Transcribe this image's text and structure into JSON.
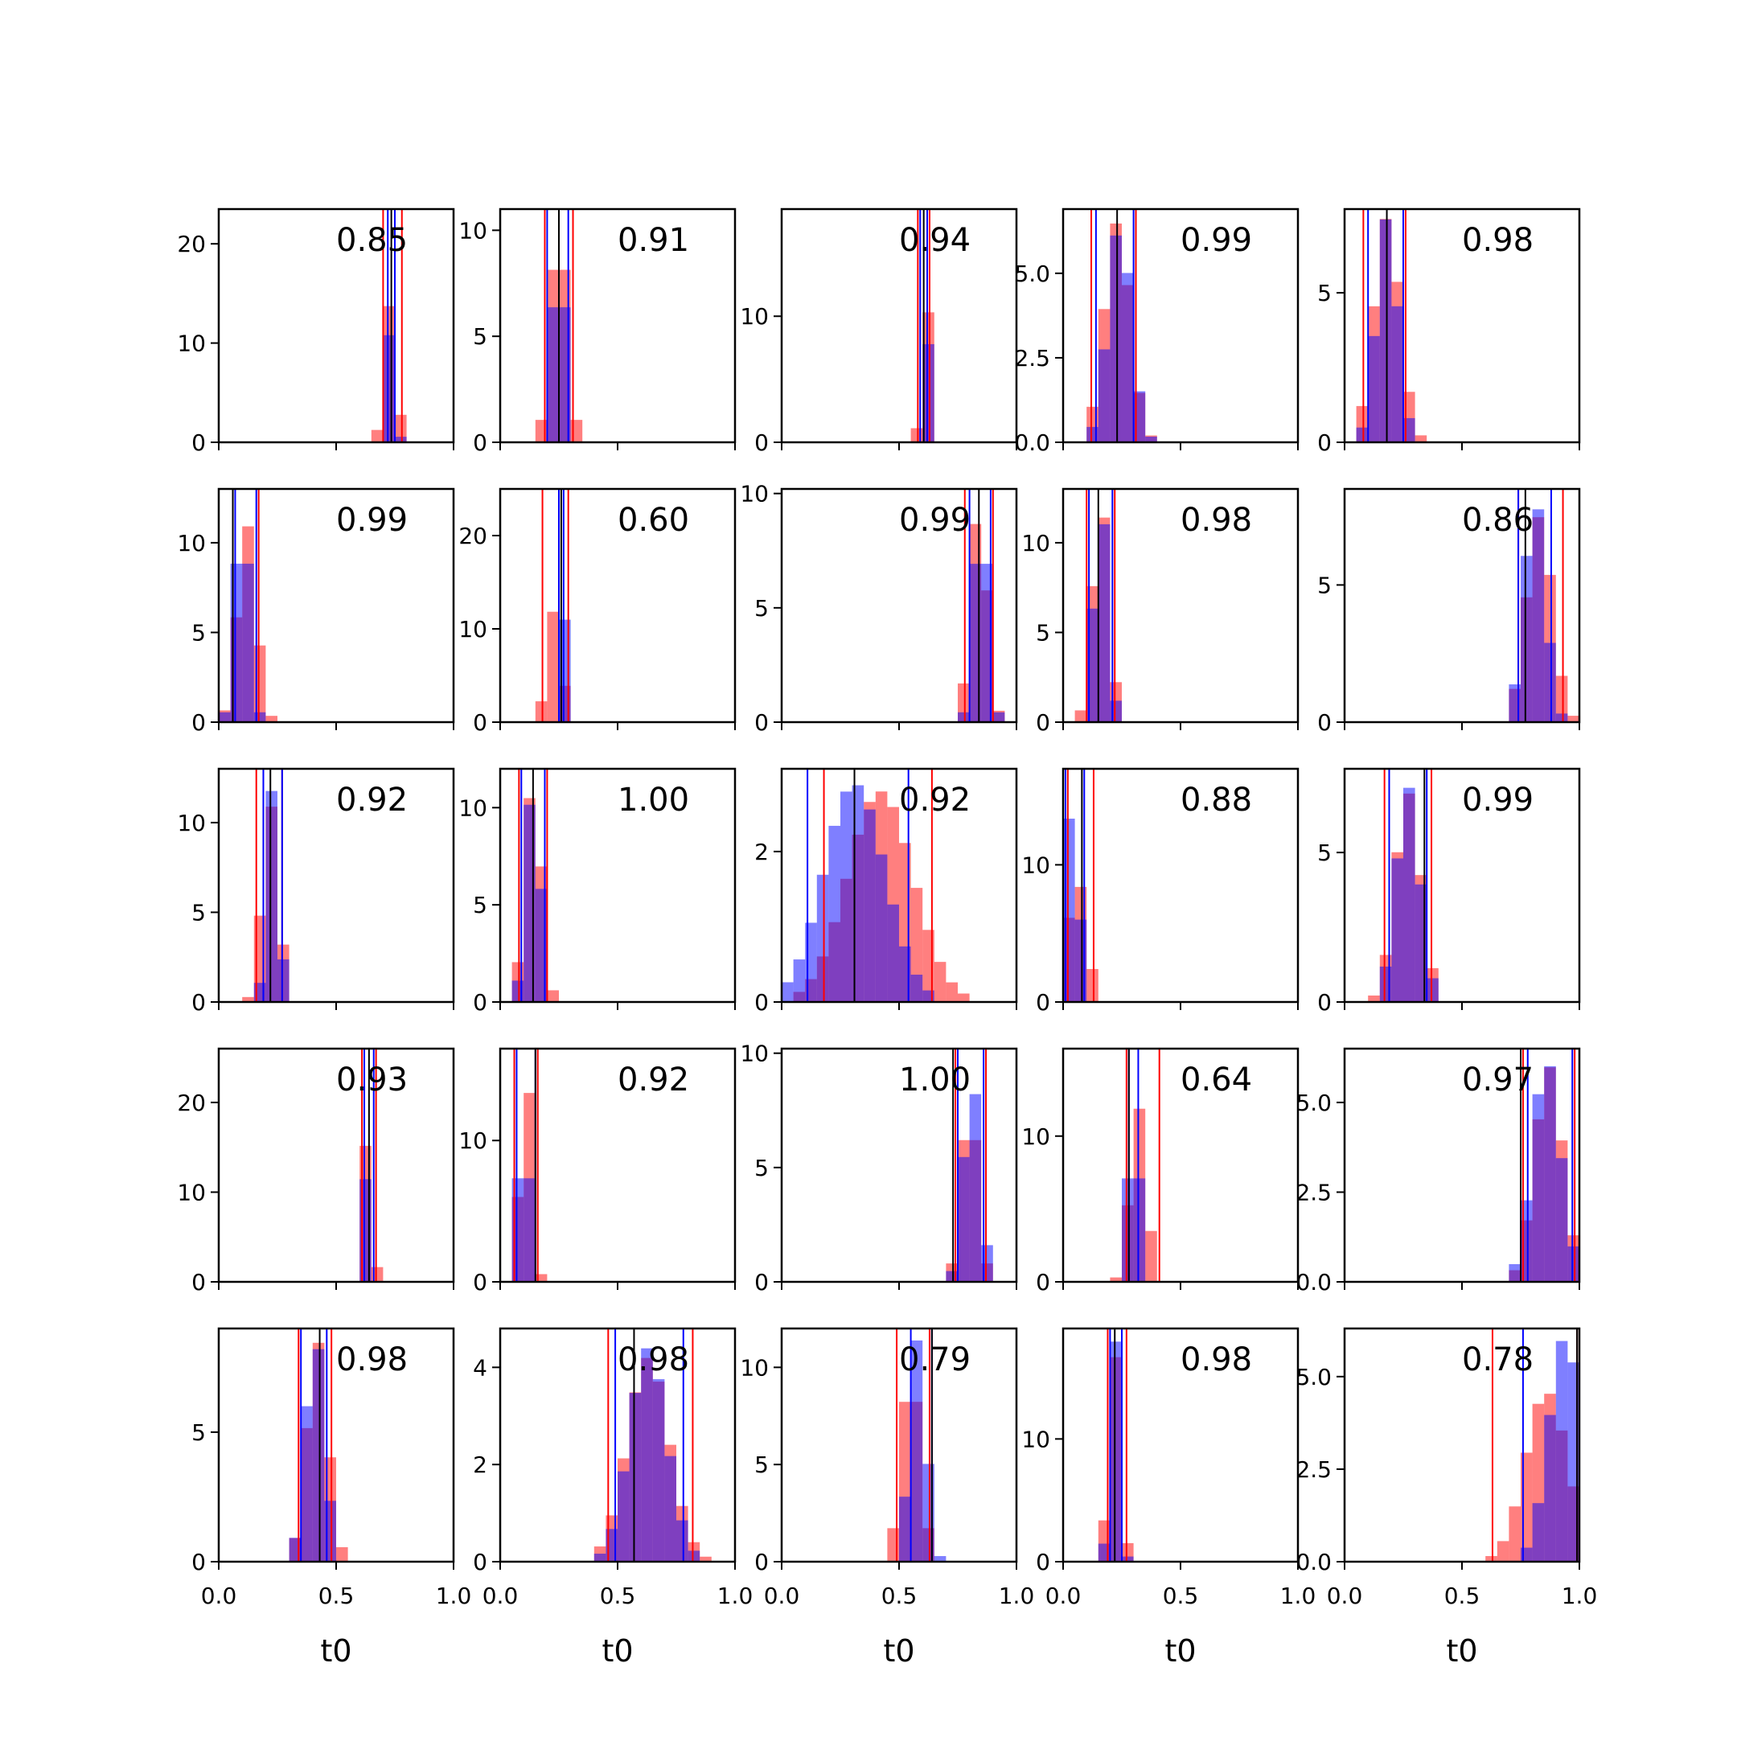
{
  "figure": {
    "xlabel": "t0"
  },
  "colors": {
    "red_series": "#ff0000",
    "blue_series": "#0000ff",
    "overlap": "#7f3fbf",
    "median_line": "#000000",
    "background": "#ffffff"
  },
  "chart_data": {
    "type": "histogram-grid",
    "rows": 5,
    "cols": 5,
    "xlim": [
      0,
      1
    ],
    "xticks": [
      0.0,
      0.5,
      1.0
    ],
    "xtick_labels": [
      "0.0",
      "0.5",
      "1.0"
    ],
    "xlabel": "t0",
    "series_colors": {
      "red": "#ff0000",
      "blue": "#0000ff"
    },
    "panels": [
      {
        "annotation": "0.85",
        "ymax": 23.5,
        "yticks": [
          0,
          10,
          20
        ],
        "ytick_labels": [
          "0",
          "10",
          "20"
        ],
        "red": {
          "mean": 0.73,
          "sd": 0.025,
          "peak": 14
        },
        "blue": {
          "mean": 0.74,
          "sd": 0.013,
          "peak": 21
        },
        "vlines": {
          "red": [
            0.7,
            0.78
          ],
          "blue": [
            0.72,
            0.75
          ],
          "black": 0.735
        }
      },
      {
        "annotation": "0.91",
        "ymax": 11,
        "yticks": [
          0,
          5,
          10
        ],
        "ytick_labels": [
          "0",
          "5",
          "10"
        ],
        "red": {
          "mean": 0.25,
          "sd": 0.035,
          "peak": 10.5
        },
        "blue": {
          "mean": 0.25,
          "sd": 0.025,
          "peak": 10.5
        },
        "vlines": {
          "red": [
            0.19,
            0.31
          ],
          "blue": [
            0.2,
            0.29
          ],
          "black": 0.25
        }
      },
      {
        "annotation": "0.94",
        "ymax": 18.5,
        "yticks": [
          0,
          10
        ],
        "ytick_labels": [
          "0",
          "10"
        ],
        "red": {
          "mean": 0.61,
          "sd": 0.015,
          "peak": 17
        },
        "blue": {
          "mean": 0.61,
          "sd": 0.012,
          "peak": 17
        },
        "vlines": {
          "red": [
            0.58,
            0.63
          ],
          "blue": [
            0.59,
            0.62
          ],
          "black": 0.605
        }
      },
      {
        "annotation": "0.99",
        "ymax": 6.9,
        "yticks": [
          0,
          2.5,
          5
        ],
        "ytick_labels": [
          "0.0",
          "2.5",
          "5.0"
        ],
        "red": {
          "mean": 0.23,
          "sd": 0.055,
          "peak": 6.5
        },
        "blue": {
          "mean": 0.24,
          "sd": 0.05,
          "peak": 6.4
        },
        "vlines": {
          "red": [
            0.12,
            0.31
          ],
          "blue": [
            0.14,
            0.3
          ],
          "black": 0.23
        }
      },
      {
        "annotation": "0.98",
        "ymax": 7.8,
        "yticks": [
          0,
          5
        ],
        "ytick_labels": [
          "0",
          "5"
        ],
        "red": {
          "mean": 0.18,
          "sd": 0.055,
          "peak": 7.5
        },
        "blue": {
          "mean": 0.18,
          "sd": 0.045,
          "peak": 7.5
        },
        "vlines": {
          "red": [
            0.08,
            0.26
          ],
          "blue": [
            0.1,
            0.25
          ],
          "black": 0.18
        }
      },
      {
        "annotation": "0.99",
        "ymax": 13,
        "yticks": [
          0,
          5,
          10
        ],
        "ytick_labels": [
          "0",
          "5",
          "10"
        ],
        "red": {
          "mean": 0.12,
          "sd": 0.04,
          "peak": 11
        },
        "blue": {
          "mean": 0.1,
          "sd": 0.03,
          "peak": 12.5
        },
        "vlines": {
          "red": [
            0.06,
            0.17
          ],
          "blue": [
            0.07,
            0.16
          ],
          "black": 0.06
        }
      },
      {
        "annotation": "0.60",
        "ymax": 25,
        "yticks": [
          0,
          10,
          20
        ],
        "ytick_labels": [
          "0",
          "10",
          "20"
        ],
        "red": {
          "mean": 0.23,
          "sd": 0.03,
          "peak": 12
        },
        "blue": {
          "mean": 0.26,
          "sd": 0.012,
          "peak": 24
        },
        "vlines": {
          "red": [
            0.18,
            0.29
          ],
          "blue": [
            0.25,
            0.27
          ],
          "black": 0.26
        }
      },
      {
        "annotation": "0.99",
        "ymax": 10.2,
        "yticks": [
          0,
          5,
          10
        ],
        "ytick_labels": [
          "0",
          "5",
          "10"
        ],
        "red": {
          "mean": 0.84,
          "sd": 0.035,
          "peak": 9.5
        },
        "blue": {
          "mean": 0.85,
          "sd": 0.03,
          "peak": 9.8
        },
        "vlines": {
          "red": [
            0.78,
            0.9
          ],
          "blue": [
            0.8,
            0.89
          ],
          "black": 0.84
        }
      },
      {
        "annotation": "0.98",
        "ymax": 13,
        "yticks": [
          0,
          5,
          10
        ],
        "ytick_labels": [
          "0",
          "5",
          "10"
        ],
        "red": {
          "mean": 0.16,
          "sd": 0.035,
          "peak": 12.5
        },
        "blue": {
          "mean": 0.16,
          "sd": 0.03,
          "peak": 12.5
        },
        "vlines": {
          "red": [
            0.1,
            0.22
          ],
          "blue": [
            0.11,
            0.21
          ],
          "black": 0.15
        }
      },
      {
        "annotation": "0.86",
        "ymax": 8.5,
        "yticks": [
          0,
          5
        ],
        "ytick_labels": [
          "0",
          "5"
        ],
        "red": {
          "mean": 0.83,
          "sd": 0.055,
          "peak": 7.5
        },
        "blue": {
          "mean": 0.81,
          "sd": 0.045,
          "peak": 8.2
        },
        "vlines": {
          "red": [
            0.74,
            0.93
          ],
          "blue": [
            0.74,
            0.88
          ],
          "black": 0.77
        }
      },
      {
        "annotation": "0.92",
        "ymax": 13,
        "yticks": [
          0,
          5,
          10
        ],
        "ytick_labels": [
          "0",
          "5",
          "10"
        ],
        "red": {
          "mean": 0.22,
          "sd": 0.035,
          "peak": 11
        },
        "blue": {
          "mean": 0.23,
          "sd": 0.025,
          "peak": 12
        },
        "vlines": {
          "red": [
            0.16,
            0.27
          ],
          "blue": [
            0.19,
            0.27
          ],
          "black": 0.22
        }
      },
      {
        "annotation": "1.00",
        "ymax": 12,
        "yticks": [
          0,
          5,
          10
        ],
        "ytick_labels": [
          "0",
          "5",
          "10"
        ],
        "red": {
          "mean": 0.14,
          "sd": 0.035,
          "peak": 11.5
        },
        "blue": {
          "mean": 0.14,
          "sd": 0.03,
          "peak": 11.5
        },
        "vlines": {
          "red": [
            0.08,
            0.2
          ],
          "blue": [
            0.09,
            0.19
          ],
          "black": 0.14
        }
      },
      {
        "annotation": "0.92",
        "ymax": 3.1,
        "yticks": [
          0,
          2
        ],
        "ytick_labels": [
          "0",
          "2"
        ],
        "red": {
          "mean": 0.42,
          "sd": 0.14,
          "peak": 2.8
        },
        "blue": {
          "mean": 0.31,
          "sd": 0.13,
          "peak": 2.9
        },
        "vlines": {
          "red": [
            0.18,
            0.64
          ],
          "blue": [
            0.11,
            0.54
          ],
          "black": 0.31
        }
      },
      {
        "annotation": "0.88",
        "ymax": 17,
        "yticks": [
          0,
          10
        ],
        "ytick_labels": [
          "0",
          "10"
        ],
        "red": {
          "mean": 0.06,
          "sd": 0.04,
          "peak": 9
        },
        "blue": {
          "mean": 0.04,
          "sd": 0.025,
          "peak": 16
        },
        "vlines": {
          "red": [
            0.02,
            0.13
          ],
          "blue": [
            0.01,
            0.09
          ],
          "black": 0.08
        }
      },
      {
        "annotation": "0.99",
        "ymax": 7.8,
        "yticks": [
          0,
          5
        ],
        "ytick_labels": [
          "0",
          "5"
        ],
        "red": {
          "mean": 0.27,
          "sd": 0.055,
          "peak": 7
        },
        "blue": {
          "mean": 0.27,
          "sd": 0.05,
          "peak": 7.2
        },
        "vlines": {
          "red": [
            0.17,
            0.37
          ],
          "blue": [
            0.19,
            0.35
          ],
          "black": 0.34
        }
      },
      {
        "annotation": "0.93",
        "ymax": 26,
        "yticks": [
          0,
          10,
          20
        ],
        "ytick_labels": [
          "0",
          "10",
          "20"
        ],
        "red": {
          "mean": 0.64,
          "sd": 0.015,
          "peak": 25
        },
        "blue": {
          "mean": 0.64,
          "sd": 0.012,
          "peak": 25
        },
        "vlines": {
          "red": [
            0.61,
            0.67
          ],
          "blue": [
            0.62,
            0.66
          ],
          "black": 0.64
        }
      },
      {
        "annotation": "0.92",
        "ymax": 16.5,
        "yticks": [
          0,
          10
        ],
        "ytick_labels": [
          "0",
          "10"
        ],
        "red": {
          "mean": 0.11,
          "sd": 0.025,
          "peak": 16
        },
        "blue": {
          "mean": 0.1,
          "sd": 0.02,
          "peak": 16
        },
        "vlines": {
          "red": [
            0.06,
            0.16
          ],
          "blue": [
            0.07,
            0.15
          ],
          "black": 0.15
        }
      },
      {
        "annotation": "1.00",
        "ymax": 10.2,
        "yticks": [
          0,
          5,
          10
        ],
        "ytick_labels": [
          "0",
          "5",
          "10"
        ],
        "red": {
          "mean": 0.8,
          "sd": 0.035,
          "peak": 8
        },
        "blue": {
          "mean": 0.81,
          "sd": 0.035,
          "peak": 9
        },
        "vlines": {
          "red": [
            0.74,
            0.87
          ],
          "blue": [
            0.75,
            0.86
          ],
          "black": 0.73
        }
      },
      {
        "annotation": "0.64",
        "ymax": 16,
        "yticks": [
          0,
          10
        ],
        "ytick_labels": [
          "0",
          "10"
        ],
        "red": {
          "mean": 0.32,
          "sd": 0.035,
          "peak": 12
        },
        "blue": {
          "mean": 0.3,
          "sd": 0.02,
          "peak": 15.5
        },
        "vlines": {
          "red": [
            0.27,
            0.41
          ],
          "blue": [
            0.28,
            0.32
          ],
          "black": 0.28
        }
      },
      {
        "annotation": "0.97",
        "ymax": 6.5,
        "yticks": [
          0,
          2.5,
          5
        ],
        "ytick_labels": [
          "0.0",
          "2.5",
          "5.0"
        ],
        "red": {
          "mean": 0.87,
          "sd": 0.06,
          "peak": 6
        },
        "blue": {
          "mean": 0.86,
          "sd": 0.06,
          "peak": 6.2
        },
        "vlines": {
          "red": [
            0.76,
            0.98
          ],
          "blue": [
            0.78,
            0.97
          ],
          "black": 0.75
        }
      },
      {
        "annotation": "0.98",
        "ymax": 9,
        "yticks": [
          0,
          5
        ],
        "ytick_labels": [
          "0",
          "5"
        ],
        "red": {
          "mean": 0.42,
          "sd": 0.045,
          "peak": 8.5
        },
        "blue": {
          "mean": 0.41,
          "sd": 0.04,
          "peak": 8.8
        },
        "vlines": {
          "red": [
            0.34,
            0.48
          ],
          "blue": [
            0.35,
            0.46
          ],
          "black": 0.43
        }
      },
      {
        "annotation": "0.98",
        "ymax": 4.8,
        "yticks": [
          0,
          2,
          4
        ],
        "ytick_labels": [
          "0",
          "2",
          "4"
        ],
        "red": {
          "mean": 0.63,
          "sd": 0.09,
          "peak": 4.2
        },
        "blue": {
          "mean": 0.63,
          "sd": 0.08,
          "peak": 4.4
        },
        "vlines": {
          "red": [
            0.46,
            0.82
          ],
          "blue": [
            0.49,
            0.78
          ],
          "black": 0.57
        }
      },
      {
        "annotation": "0.79",
        "ymax": 12,
        "yticks": [
          0,
          5,
          10
        ],
        "ytick_labels": [
          "0",
          "5",
          "10"
        ],
        "red": {
          "mean": 0.55,
          "sd": 0.04,
          "peak": 10
        },
        "blue": {
          "mean": 0.58,
          "sd": 0.035,
          "peak": 11.5
        },
        "vlines": {
          "red": [
            0.49,
            0.63
          ],
          "blue": [
            0.55,
            0.64
          ],
          "black": 0.64
        }
      },
      {
        "annotation": "0.98",
        "ymax": 19,
        "yticks": [
          0,
          10
        ],
        "ytick_labels": [
          "0",
          "10"
        ],
        "red": {
          "mean": 0.22,
          "sd": 0.025,
          "peak": 17
        },
        "blue": {
          "mean": 0.22,
          "sd": 0.02,
          "peak": 18.5
        },
        "vlines": {
          "red": [
            0.19,
            0.27
          ],
          "blue": [
            0.2,
            0.25
          ],
          "black": 0.22
        }
      },
      {
        "annotation": "0.78",
        "ymax": 6.3,
        "yticks": [
          0,
          2.5,
          5
        ],
        "ytick_labels": [
          "0.0",
          "2.5",
          "5.0"
        ],
        "red": {
          "mean": 0.86,
          "sd": 0.09,
          "peak": 4.6
        },
        "blue": {
          "mean": 0.94,
          "sd": 0.07,
          "peak": 6.1
        },
        "vlines": {
          "red": [
            0.63,
            0.99
          ],
          "blue": [
            0.76,
            1.0
          ],
          "black": 0.99
        }
      }
    ]
  }
}
